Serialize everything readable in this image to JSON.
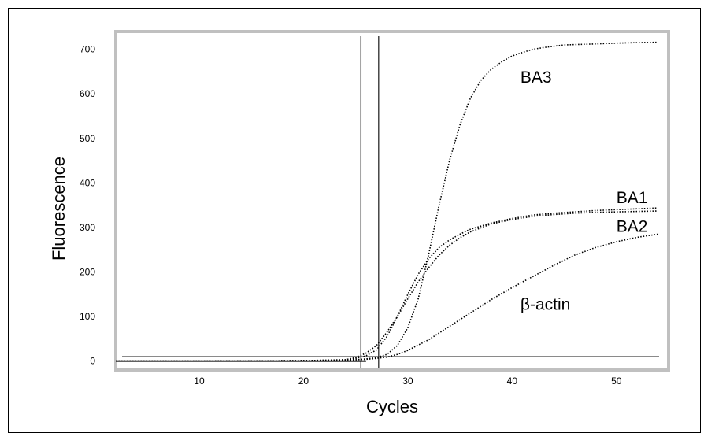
{
  "chart_data": {
    "type": "line",
    "title": "",
    "xlabel": "Cycles",
    "ylabel": "Fluorescence",
    "xlim": [
      2,
      55
    ],
    "ylim": [
      -20,
      740
    ],
    "x_ticks": [
      10,
      20,
      30,
      40,
      50
    ],
    "y_ticks": [
      0,
      100,
      200,
      300,
      400,
      500,
      600,
      700
    ],
    "grid": false,
    "threshold": 10,
    "threshold_cycles": [
      25.5,
      27.2
    ],
    "series": [
      {
        "name": "BA3",
        "x": [
          2,
          10,
          20,
          24,
          25,
          26,
          27,
          28,
          29,
          30,
          31,
          32,
          33,
          34,
          35,
          36,
          37,
          38,
          39,
          40,
          41,
          42,
          43,
          44,
          45,
          48,
          50,
          54
        ],
        "y": [
          0,
          0,
          1,
          2,
          3,
          5,
          8,
          15,
          35,
          75,
          140,
          240,
          350,
          450,
          530,
          590,
          630,
          655,
          672,
          685,
          693,
          700,
          704,
          707,
          710,
          712,
          714,
          716
        ]
      },
      {
        "name": "BA1",
        "x": [
          2,
          10,
          20,
          24,
          25,
          26,
          27,
          28,
          29,
          30,
          31,
          32,
          33,
          34,
          35,
          36,
          38,
          40,
          42,
          44,
          46,
          48,
          50,
          52,
          54
        ],
        "y": [
          0,
          0,
          1,
          3,
          6,
          12,
          25,
          55,
          100,
          150,
          195,
          230,
          255,
          272,
          285,
          296,
          310,
          320,
          328,
          332,
          335,
          338,
          340,
          342,
          344
        ]
      },
      {
        "name": "BA2",
        "x": [
          2,
          10,
          20,
          24,
          25,
          26,
          27,
          28,
          29,
          30,
          31,
          32,
          33,
          34,
          35,
          36,
          38,
          40,
          42,
          44,
          46,
          48,
          50,
          52,
          54
        ],
        "y": [
          0,
          0,
          1,
          3,
          8,
          18,
          35,
          65,
          100,
          140,
          178,
          210,
          238,
          260,
          277,
          290,
          308,
          318,
          325,
          329,
          332,
          334,
          335,
          336,
          337
        ]
      },
      {
        "name": "β-actin",
        "x": [
          2,
          10,
          20,
          24,
          25,
          26,
          27,
          28,
          29,
          30,
          32,
          34,
          36,
          38,
          40,
          42,
          44,
          46,
          48,
          50,
          52,
          54
        ],
        "y": [
          0,
          0,
          1,
          2,
          3,
          4,
          6,
          9,
          15,
          24,
          48,
          78,
          108,
          138,
          165,
          190,
          215,
          238,
          255,
          268,
          278,
          285
        ]
      }
    ],
    "annotations": [
      {
        "text": "BA3",
        "x": 40.8,
        "y": 625
      },
      {
        "text": "BA1",
        "x": 50.0,
        "y": 355
      },
      {
        "text": "BA2",
        "x": 50.0,
        "y": 290
      },
      {
        "text": "β-actin",
        "x": 40.8,
        "y": 115
      }
    ]
  },
  "style": {
    "axis_color": "#c0c0c0",
    "line_color": "#000000",
    "marker_line_color": "#444444"
  }
}
